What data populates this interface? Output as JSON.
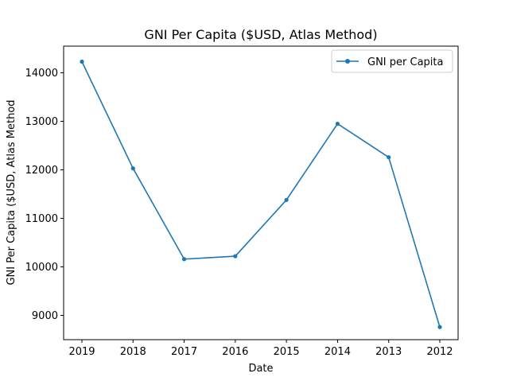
{
  "chart_data": {
    "type": "line",
    "title": "GNI Per Capita ($USD, Atlas Method)",
    "xlabel": "Date",
    "ylabel": "GNI Per Capita ($USD, Atlas Method",
    "categories": [
      "2019",
      "2018",
      "2017",
      "2016",
      "2015",
      "2014",
      "2013",
      "2012"
    ],
    "series": [
      {
        "name": "GNI per Capita",
        "color": "#1f77b4",
        "marker": "circle",
        "values": [
          14230,
          12030,
          10160,
          10220,
          11380,
          12950,
          12260,
          8760
        ]
      }
    ],
    "ylim": [
      8500,
      14550
    ],
    "yticks": [
      9000,
      10000,
      11000,
      12000,
      13000,
      14000
    ],
    "grid": false,
    "legend_position": "top-right"
  }
}
